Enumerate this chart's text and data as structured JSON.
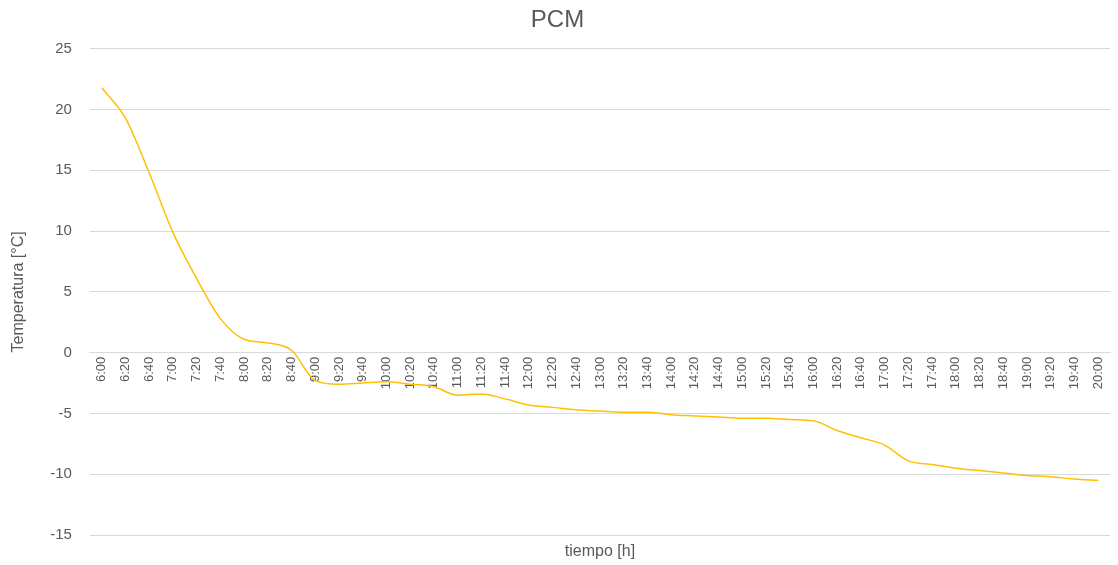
{
  "chart_data": {
    "type": "line",
    "title": "PCM",
    "xlabel": "tiempo [h]",
    "ylabel": "Temperatura [°C]",
    "categories": [
      "6:00",
      "6:20",
      "6:40",
      "7:00",
      "7:20",
      "7:40",
      "8:00",
      "8:20",
      "8:40",
      "9:00",
      "9:20",
      "9:40",
      "10:00",
      "10:20",
      "10:40",
      "11:00",
      "11:20",
      "11:40",
      "12:00",
      "12:20",
      "12:40",
      "13:00",
      "13:20",
      "13:40",
      "14:00",
      "14:20",
      "14:40",
      "15:00",
      "15:20",
      "15:40",
      "16:00",
      "16:20",
      "16:40",
      "17:00",
      "17:20",
      "17:40",
      "18:00",
      "18:20",
      "18:40",
      "19:00",
      "19:20",
      "19:40",
      "20:00"
    ],
    "series": [
      {
        "color": "#ffc000",
        "values": [
          21.8,
          19.3,
          14.8,
          9.9,
          6.1,
          2.8,
          1.1,
          0.8,
          0.2,
          -2.3,
          -2.6,
          -2.5,
          -2.4,
          -2.6,
          -2.8,
          -3.5,
          -3.4,
          -3.8,
          -4.3,
          -4.5,
          -4.7,
          -4.8,
          -4.9,
          -4.9,
          -5.1,
          -5.2,
          -5.3,
          -5.4,
          -5.4,
          -5.5,
          -5.6,
          -6.4,
          -7.0,
          -7.6,
          -8.9,
          -9.2,
          -9.5,
          -9.7,
          -9.9,
          -10.1,
          -10.2,
          -10.4,
          -10.5
        ]
      }
    ],
    "ylim": [
      -15,
      25
    ],
    "yticks": [
      -15,
      -10,
      -5,
      0,
      5,
      10,
      15,
      20,
      25
    ],
    "grid": "y",
    "legend": false,
    "marker": "none",
    "line_style": "solid"
  }
}
